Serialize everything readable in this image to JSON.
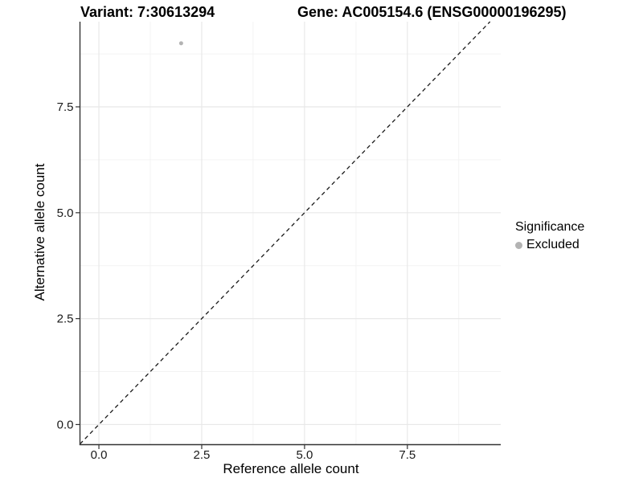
{
  "header": {
    "variant_title": "Variant: 7:30613294",
    "gene_title": "Gene: AC005154.6 (ENSG00000196295)"
  },
  "chart_data": {
    "type": "scatter",
    "titles": {
      "left": "Variant: 7:30613294",
      "right": "Gene: AC005154.6 (ENSG00000196295)"
    },
    "x_axis": {
      "label": "Reference allele count",
      "ticks": [
        0,
        2.5,
        5,
        7.5
      ],
      "tick_labels": [
        "0.0",
        "2.5",
        "5.0",
        "7.5"
      ],
      "range": [
        -0.46,
        9.77
      ]
    },
    "y_axis": {
      "label": "Alternative allele count",
      "ticks": [
        0,
        2.5,
        5,
        7.5
      ],
      "tick_labels": [
        "0.0",
        "2.5",
        "5.0",
        "7.5"
      ],
      "range": [
        -0.475,
        9.51
      ]
    },
    "points": [
      {
        "x": 2,
        "y": 9,
        "significance": "Excluded"
      }
    ],
    "reference_line": {
      "equation": "y = x",
      "style": "dashed",
      "color": "#1a1a1a"
    },
    "legend": {
      "title": "Significance",
      "position": "right",
      "entries": [
        {
          "label": "Excluded",
          "color": "#b3b3b3",
          "marker": "circle"
        }
      ]
    },
    "grid": {
      "major": true,
      "minor": true
    }
  },
  "colors": {
    "background": "#ffffff",
    "grid_major": "#e8e8e8",
    "grid_minor": "#f3f3f3",
    "axis_line": "#333333",
    "tick_label": "#1a1a1a",
    "point_excluded": "#b3b3b3"
  }
}
